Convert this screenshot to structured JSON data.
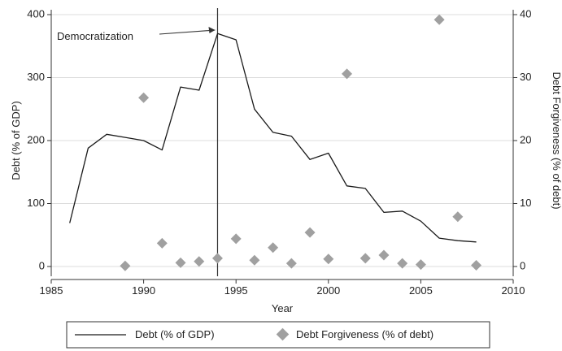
{
  "chart_data": {
    "type": "line",
    "xlabel": "Year",
    "ylabel_left": "Debt  (% of GDP)",
    "ylabel_right": "Debt Forgiveness (% of debt)",
    "xlim": [
      1985,
      2010
    ],
    "ylim_left": [
      0,
      400
    ],
    "ylim_right": [
      0,
      40
    ],
    "x_ticks": [
      1985,
      1990,
      1995,
      2000,
      2005,
      2010
    ],
    "y_left_ticks": [
      0,
      100,
      200,
      300,
      400
    ],
    "y_right_ticks": [
      0,
      10,
      20,
      30,
      40
    ],
    "grid": "horizontal",
    "legend_position": "bottom",
    "series": [
      {
        "name": "Debt  (% of GDP)",
        "type": "line",
        "axis": "left",
        "color": "#1a1a1a",
        "points": [
          [
            1986,
            69
          ],
          [
            1987,
            188
          ],
          [
            1988,
            210
          ],
          [
            1989,
            205
          ],
          [
            1990,
            200
          ],
          [
            1991,
            185
          ],
          [
            1992,
            285
          ],
          [
            1993,
            280
          ],
          [
            1994,
            370
          ],
          [
            1995,
            360
          ],
          [
            1996,
            250
          ],
          [
            1997,
            213
          ],
          [
            1998,
            207
          ],
          [
            1999,
            170
          ],
          [
            2000,
            180
          ],
          [
            2001,
            128
          ],
          [
            2002,
            124
          ],
          [
            2003,
            86
          ],
          [
            2004,
            88
          ],
          [
            2005,
            72
          ],
          [
            2006,
            45
          ],
          [
            2007,
            41
          ],
          [
            2008,
            39
          ]
        ]
      },
      {
        "name": "Debt Forgiveness (% of debt)",
        "type": "scatter",
        "axis": "right",
        "color": "#a0a0a0",
        "marker": "diamond",
        "points": [
          [
            1989,
            0.1
          ],
          [
            1990,
            26.8
          ],
          [
            1991,
            3.7
          ],
          [
            1992,
            0.6
          ],
          [
            1993,
            0.8
          ],
          [
            1994,
            1.3
          ],
          [
            1995,
            4.4
          ],
          [
            1996,
            1.0
          ],
          [
            1997,
            3.0
          ],
          [
            1998,
            0.5
          ],
          [
            1999,
            5.4
          ],
          [
            2000,
            1.2
          ],
          [
            2001,
            30.6
          ],
          [
            2002,
            1.3
          ],
          [
            2003,
            1.8
          ],
          [
            2004,
            0.5
          ],
          [
            2005,
            0.3
          ],
          [
            2006,
            39.2
          ],
          [
            2007,
            7.9
          ],
          [
            2008,
            0.2
          ]
        ]
      }
    ],
    "annotations": [
      {
        "text": "Democratization",
        "x": 1994,
        "vertical_line": true
      }
    ]
  }
}
